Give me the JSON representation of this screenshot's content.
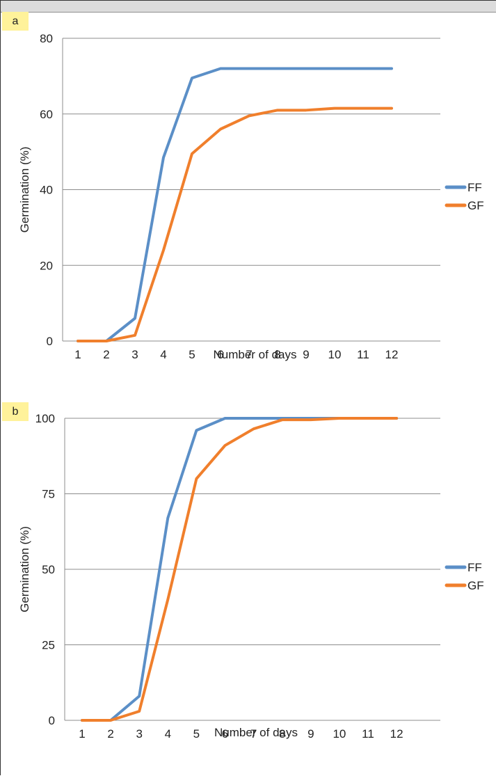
{
  "panels": [
    {
      "tag": "a",
      "chart_data": {
        "type": "line",
        "x": [
          1,
          2,
          3,
          4,
          5,
          6,
          7,
          8,
          9,
          10,
          11,
          12
        ],
        "xticks": [
          "1",
          "2",
          "3",
          "4",
          "5",
          "6",
          "7",
          "8",
          "9",
          "10",
          "11",
          "12"
        ],
        "yticks": [
          "0",
          "20",
          "40",
          "60",
          "80"
        ],
        "ylim": [
          0,
          80
        ],
        "xlabel": "Number of days",
        "ylabel": "Germination (%)",
        "grid": true,
        "legend_position": "right",
        "series": [
          {
            "name": "FF",
            "color": "#5b8fc7",
            "values": [
              0,
              0,
              6,
              48.5,
              69.5,
              72,
              72,
              72,
              72,
              72,
              72,
              72
            ]
          },
          {
            "name": "GF",
            "color": "#f07f2c",
            "values": [
              0,
              0,
              1.5,
              24,
              49.5,
              56,
              59.5,
              61,
              61,
              61.5,
              61.5,
              61.5
            ]
          }
        ]
      }
    },
    {
      "tag": "b",
      "chart_data": {
        "type": "line",
        "x": [
          1,
          2,
          3,
          4,
          5,
          6,
          7,
          8,
          9,
          10,
          11,
          12
        ],
        "xticks": [
          "1",
          "2",
          "3",
          "4",
          "5",
          "6",
          "7",
          "8",
          "9",
          "10",
          "11",
          "12"
        ],
        "yticks": [
          "0",
          "25",
          "50",
          "75",
          "100"
        ],
        "ylim": [
          0,
          100
        ],
        "xlabel": "Number of days",
        "ylabel": "Germination (%)",
        "grid": true,
        "legend_position": "right",
        "series": [
          {
            "name": "FF",
            "color": "#5b8fc7",
            "values": [
              0,
              0,
              8,
              67,
              96,
              100,
              100,
              100,
              100,
              100,
              100,
              100
            ]
          },
          {
            "name": "GF",
            "color": "#f07f2c",
            "values": [
              0,
              0,
              3,
              40,
              80,
              91,
              96.5,
              99.5,
              99.5,
              100,
              100,
              100
            ]
          }
        ]
      }
    }
  ]
}
